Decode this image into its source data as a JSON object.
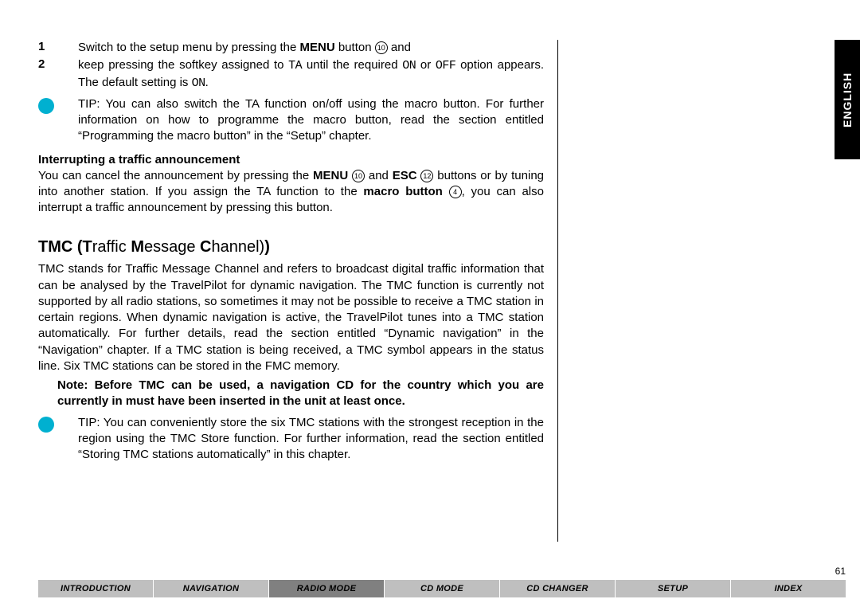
{
  "list": {
    "item1": {
      "num": "1",
      "pre": "Switch to the setup menu by pressing the ",
      "menu": "MENU",
      "post": " button ",
      "circ": "10",
      "tail": " and"
    },
    "item2": {
      "num": "2",
      "pre": "keep pressing the softkey assigned to ",
      "ta": "TA",
      "mid": " until the required ",
      "on": "ON",
      "or": " or ",
      "off": "OFF",
      "post": " option appears. The default setting is ",
      "on2": "ON",
      "dot": "."
    }
  },
  "tip1": "TIP: You can also switch the TA function on/off using the macro button. For further information on how to programme the macro button, read the section entitled “Programming the macro button” in the “Setup” chapter.",
  "subhead1": "Interrupting a traffic announcement",
  "interrupt": {
    "p1a": "You can cancel the announcement by pressing the ",
    "menu": "MENU",
    "c1": "10",
    "and": " and ",
    "esc": "ESC",
    "c2": "12",
    "p1b": " buttons or by tuning into another station. If you assign the TA function to the ",
    "macro": "macro button",
    "c3": "4",
    "p1c": ", you can also interrupt a traffic announcement by pressing this button."
  },
  "h2": {
    "pre": "TMC (",
    "t": "T",
    "raffic": "raffic ",
    "m": "M",
    "essage": "essage ",
    "c": "C",
    "hannel": "hannel)"
  },
  "tmc_para": "TMC stands for Traffic Message Channel and refers to broadcast digital traffic information that can be analysed by the TravelPilot for dynamic navigation. The TMC function is currently not supported by all radio stations, so sometimes it may not be possible to receive a TMC station in certain regions. When dynamic navigation is active, the TravelPilot tunes into a TMC station automatically. For further details, read the section entitled “Dynamic navigation” in the “Navigation” chapter. If a TMC station is being received, a TMC symbol appears in the status line. Six TMC stations can be stored in the FMC memory.",
  "note": "Note: Before TMC can be used, a navigation CD for the country which you are currently in must have been inserted in the unit at least once.",
  "tip2": "TIP: You can conveniently store the six TMC stations with the strongest reception in the region using the TMC Store function. For further information, read the section entitled “Storing TMC stations automatically” in this chapter.",
  "lang": "ENGLISH",
  "pagenum": "61",
  "tabs": {
    "t1": "INTRODUCTION",
    "t2": "NAVIGATION",
    "t3": "RADIO MODE",
    "t4": "CD MODE",
    "t5": "CD CHANGER",
    "t6": "SETUP",
    "t7": "INDEX"
  },
  "colors": {
    "tip_dot": "#00b0d0",
    "tab_bg": "#bfbfbf",
    "tab_active": "#808080",
    "lang_bg": "#000000",
    "lang_fg": "#ffffff"
  }
}
